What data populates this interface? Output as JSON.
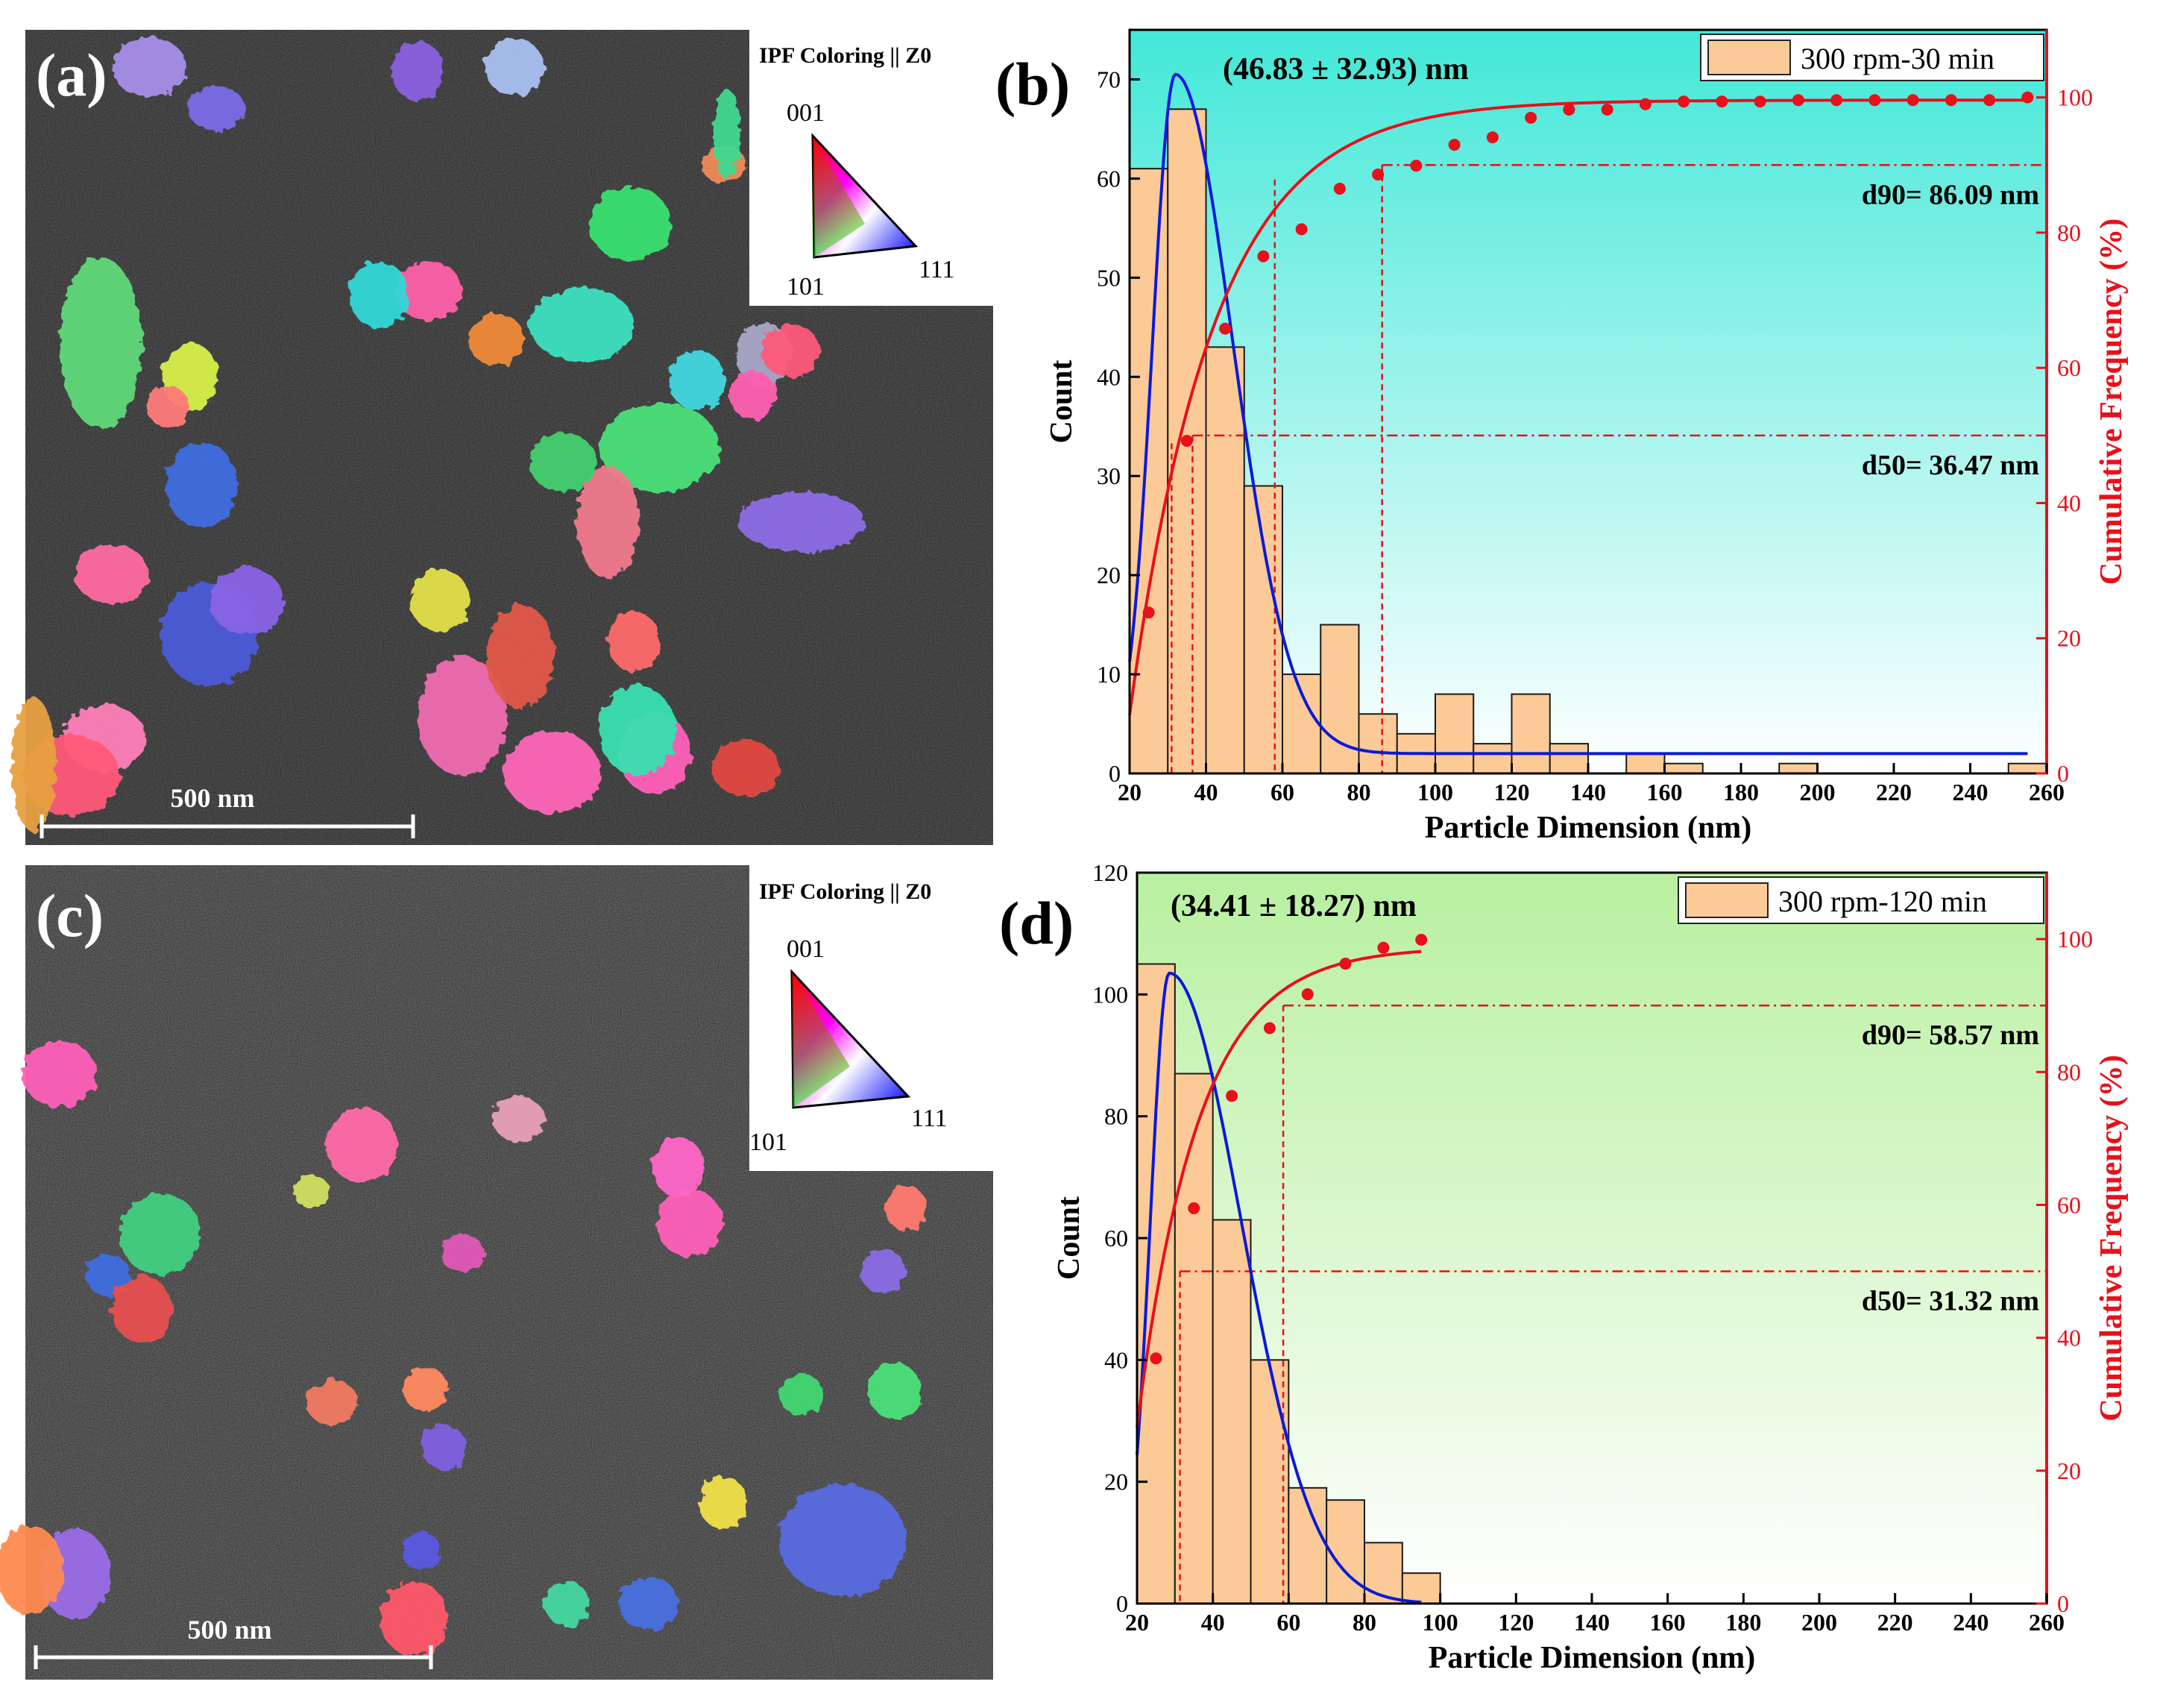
{
  "figure": {
    "panel_a": {
      "label": "(a)",
      "ipf_title": "IPF Coloring || Z0",
      "ipf_corners": [
        "001",
        "101",
        "111"
      ],
      "scale_bar": "500 nm",
      "grains": [
        {
          "c": "#5fd97a"
        },
        {
          "c": "#ff5fa8"
        },
        {
          "c": "#d8f04a"
        },
        {
          "c": "#3f6ee0"
        },
        {
          "c": "#ff6aa0"
        },
        {
          "c": "#4be07a"
        },
        {
          "c": "#4b5bd8"
        },
        {
          "c": "#8a63e6"
        },
        {
          "c": "#f07a8c"
        },
        {
          "c": "#e2e04a"
        },
        {
          "c": "#f06bb0"
        },
        {
          "c": "#e05a4a"
        },
        {
          "c": "#ff66b8"
        },
        {
          "c": "#3be0c0"
        },
        {
          "c": "#34d8d8"
        },
        {
          "c": "#ff5fb8"
        },
        {
          "c": "#38e070"
        },
        {
          "c": "#ff4fa0"
        },
        {
          "c": "#44d070"
        },
        {
          "c": "#a68ee8"
        },
        {
          "c": "#8d6ee6"
        },
        {
          "c": "#ff7fb8"
        },
        {
          "c": "#ff5a78"
        },
        {
          "c": "#a8a8c8"
        },
        {
          "c": "#a9c0f0"
        },
        {
          "c": "#38e0b0"
        },
        {
          "c": "#f08a3a"
        },
        {
          "c": "#ff5a7a"
        },
        {
          "c": "#7a6ee8"
        },
        {
          "c": "#38d0d8"
        },
        {
          "c": "#ff6a6a"
        },
        {
          "c": "#f08a5a"
        },
        {
          "c": "#e8a040"
        },
        {
          "c": "#8a60e0"
        },
        {
          "c": "#ff5fb0"
        },
        {
          "c": "#40d890"
        },
        {
          "c": "#e04a40"
        },
        {
          "c": "#ff7a7a"
        },
        {
          "c": "#5a5ae0"
        },
        {
          "c": "#40d8e0"
        }
      ]
    },
    "panel_c": {
      "label": "(c)",
      "ipf_title": "IPF Coloring || Z0",
      "ipf_corners": [
        "001",
        "101",
        "111"
      ],
      "scale_bar": "500 nm",
      "grains": [
        {
          "c": "#ff6aa8"
        },
        {
          "c": "#ff5fb8"
        },
        {
          "c": "#40d080"
        },
        {
          "c": "#f07aa0"
        },
        {
          "c": "#8a6ee6"
        },
        {
          "c": "#3f6ee0"
        },
        {
          "c": "#ff7a70"
        },
        {
          "c": "#e85050"
        },
        {
          "c": "#8060e0"
        },
        {
          "c": "#4be07a"
        },
        {
          "c": "#5a6ae0"
        },
        {
          "c": "#f0e04a"
        },
        {
          "c": "#ff66c8"
        },
        {
          "c": "#e060b0"
        },
        {
          "c": "#44d8a0"
        },
        {
          "c": "#ff8a60"
        },
        {
          "c": "#4870e0"
        },
        {
          "c": "#ff5a6a"
        },
        {
          "c": "#9a6ee8"
        },
        {
          "c": "#ff5fb8"
        },
        {
          "c": "#f07a60"
        },
        {
          "c": "#e05ab8"
        },
        {
          "c": "#5a58e0"
        },
        {
          "c": "#c060d0"
        },
        {
          "c": "#ff7090"
        },
        {
          "c": "#40d870"
        },
        {
          "c": "#b0b0e0"
        },
        {
          "c": "#d0e060"
        },
        {
          "c": "#ff8a50"
        },
        {
          "c": "#e8a0b8"
        }
      ]
    },
    "panel_b": {
      "label": "(b)",
      "chart_data": {
        "type": "bar",
        "title": "",
        "xlabel": "Particle Dimension (nm)",
        "ylabel": "Count",
        "y2label": "Cumulative Frequency (%)",
        "legend": "300 rpm-30 min",
        "legend_position": "top-right",
        "annotation": "(46.83 ± 32.93) nm",
        "xlim": [
          20,
          260
        ],
        "ylim": [
          0,
          75
        ],
        "y2lim": [
          0,
          110
        ],
        "xticks": [
          20,
          40,
          60,
          80,
          100,
          120,
          140,
          160,
          180,
          200,
          220,
          240,
          260
        ],
        "yticks": [
          0,
          10,
          20,
          30,
          40,
          50,
          60,
          70
        ],
        "y2ticks": [
          0,
          20,
          40,
          60,
          80,
          100
        ],
        "bin_width": 10,
        "bins": [
          {
            "x": 25,
            "count": 61
          },
          {
            "x": 35,
            "count": 67
          },
          {
            "x": 45,
            "count": 43
          },
          {
            "x": 55,
            "count": 29
          },
          {
            "x": 65,
            "count": 10
          },
          {
            "x": 75,
            "count": 15
          },
          {
            "x": 85,
            "count": 6
          },
          {
            "x": 95,
            "count": 4
          },
          {
            "x": 105,
            "count": 8
          },
          {
            "x": 115,
            "count": 3
          },
          {
            "x": 125,
            "count": 8
          },
          {
            "x": 135,
            "count": 3
          },
          {
            "x": 145,
            "count": 0
          },
          {
            "x": 155,
            "count": 2
          },
          {
            "x": 165,
            "count": 1
          },
          {
            "x": 175,
            "count": 0
          },
          {
            "x": 185,
            "count": 0
          },
          {
            "x": 195,
            "count": 1
          },
          {
            "x": 205,
            "count": 0
          },
          {
            "x": 215,
            "count": 0
          },
          {
            "x": 225,
            "count": 0
          },
          {
            "x": 235,
            "count": 0
          },
          {
            "x": 245,
            "count": 0
          },
          {
            "x": 255,
            "count": 1
          }
        ],
        "fit_curve": {
          "color": "#0a1ad8",
          "x_range": [
            20,
            255
          ],
          "peak_x": 32,
          "peak_y": 70.5,
          "sigma_left": 6,
          "sigma_right": 15,
          "baseline": 2
        },
        "cumulative_points": [
          {
            "x": 25,
            "y": 23.8
          },
          {
            "x": 35,
            "y": 49.2
          },
          {
            "x": 45,
            "y": 65.8
          },
          {
            "x": 55,
            "y": 76.5
          },
          {
            "x": 65,
            "y": 80.5
          },
          {
            "x": 75,
            "y": 86.5
          },
          {
            "x": 85,
            "y": 88.6
          },
          {
            "x": 95,
            "y": 89.9
          },
          {
            "x": 105,
            "y": 93.0
          },
          {
            "x": 115,
            "y": 94.1
          },
          {
            "x": 125,
            "y": 97.0
          },
          {
            "x": 135,
            "y": 98.2
          },
          {
            "x": 145,
            "y": 98.2
          },
          {
            "x": 155,
            "y": 99.0
          },
          {
            "x": 165,
            "y": 99.4
          },
          {
            "x": 175,
            "y": 99.4
          },
          {
            "x": 185,
            "y": 99.4
          },
          {
            "x": 195,
            "y": 99.6
          },
          {
            "x": 205,
            "y": 99.6
          },
          {
            "x": 215,
            "y": 99.6
          },
          {
            "x": 225,
            "y": 99.6
          },
          {
            "x": 235,
            "y": 99.6
          },
          {
            "x": 245,
            "y": 99.6
          },
          {
            "x": 255,
            "y": 100
          }
        ],
        "cumulative_fit": {
          "color": "#e8101a",
          "x0": 18,
          "scale": 22,
          "max": 99.6
        },
        "d50": {
          "label": "d50= 36.47 nm",
          "x": 36.47,
          "y": 50
        },
        "d90": {
          "label": "d90= 86.09 nm",
          "x": 86.09,
          "y": 90
        },
        "extra_guides": [
          31,
          58
        ],
        "background": {
          "top": "#42e8d8",
          "bottom": "#ffffff"
        }
      }
    },
    "panel_d": {
      "label": "(d)",
      "chart_data": {
        "type": "bar",
        "title": "",
        "xlabel": "Particle Dimension (nm)",
        "ylabel": "Count",
        "y2label": "Cumulative Frequency (%)",
        "legend": "300 rpm-120 min",
        "legend_position": "top-right",
        "annotation": "(34.41 ± 18.27) nm",
        "xlim": [
          20,
          260
        ],
        "ylim": [
          0,
          120
        ],
        "y2lim": [
          0,
          110
        ],
        "xticks": [
          20,
          40,
          60,
          80,
          100,
          120,
          140,
          160,
          180,
          200,
          220,
          240,
          260
        ],
        "yticks": [
          0,
          20,
          40,
          60,
          80,
          100,
          120
        ],
        "y2ticks": [
          0,
          20,
          40,
          60,
          80,
          100
        ],
        "bin_width": 10,
        "bins": [
          {
            "x": 25,
            "count": 105
          },
          {
            "x": 35,
            "count": 87
          },
          {
            "x": 45,
            "count": 63
          },
          {
            "x": 55,
            "count": 40
          },
          {
            "x": 65,
            "count": 19
          },
          {
            "x": 75,
            "count": 17
          },
          {
            "x": 85,
            "count": 10
          },
          {
            "x": 95,
            "count": 5
          }
        ],
        "fit_curve": {
          "color": "#0a1ad8",
          "x_range": [
            20,
            95
          ],
          "peak_x": 28.5,
          "peak_y": 103.5,
          "sigma_left": 5,
          "sigma_right": 19,
          "baseline": 0
        },
        "cumulative_points": [
          {
            "x": 25,
            "y": 36.9
          },
          {
            "x": 35,
            "y": 59.5
          },
          {
            "x": 45,
            "y": 76.4
          },
          {
            "x": 55,
            "y": 86.6
          },
          {
            "x": 65,
            "y": 91.7
          },
          {
            "x": 75,
            "y": 96.3
          },
          {
            "x": 85,
            "y": 98.7
          },
          {
            "x": 95,
            "y": 99.9
          }
        ],
        "cumulative_fit": {
          "color": "#e8101a",
          "x0": 15,
          "scale": 16,
          "max": 98.8,
          "x_end": 95
        },
        "d50": {
          "label": "d50= 31.32 nm",
          "x": 31.32,
          "y": 50
        },
        "d90": {
          "label": "d90= 58.57 nm",
          "x": 58.57,
          "y": 90
        },
        "extra_guides": [],
        "background": {
          "top": "#b8f0a0",
          "bottom": "#ffffff"
        }
      }
    }
  }
}
